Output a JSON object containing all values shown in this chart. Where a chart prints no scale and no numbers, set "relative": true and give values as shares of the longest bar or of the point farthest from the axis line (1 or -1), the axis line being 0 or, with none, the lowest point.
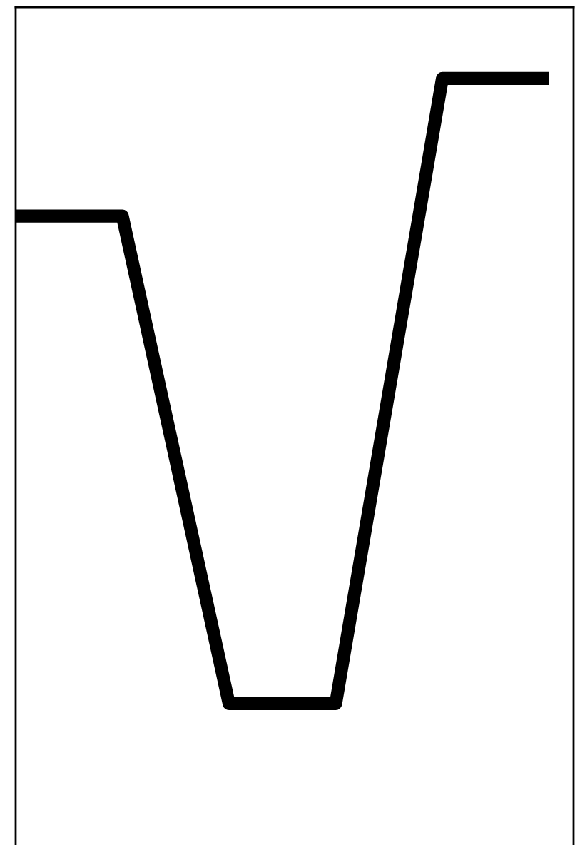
{
  "chart_data": {
    "type": "line",
    "relative": true,
    "categories": [
      null,
      null,
      null,
      null,
      null,
      null
    ],
    "series": [
      {
        "color": "#000000",
        "values": [
          0.78,
          0.78,
          0,
          0,
          1,
          1
        ]
      }
    ],
    "legend": false,
    "marker": "none",
    "line_style": "solid"
  }
}
